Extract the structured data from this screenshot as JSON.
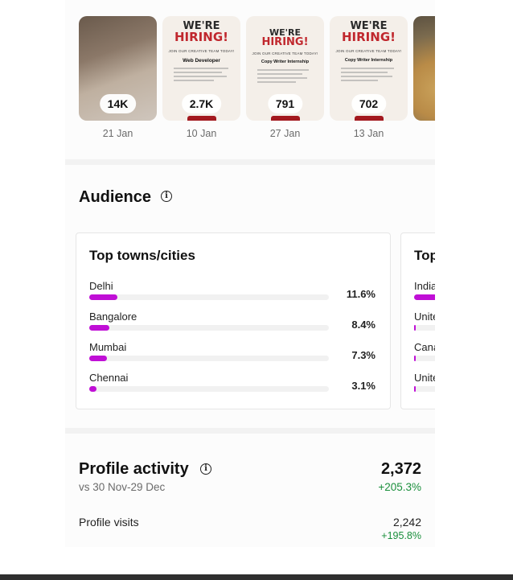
{
  "posts": [
    {
      "count": "14K",
      "date": "21 Jan"
    },
    {
      "count": "2.7K",
      "date": "10 Jan",
      "poster": {
        "line1": "WE'RE",
        "line2": "HIRING!",
        "sub": "JOIN OUR CREATIVE TEAM TODAY!",
        "role": "Web Developer"
      }
    },
    {
      "count": "791",
      "date": "27 Jan",
      "poster": {
        "line1": "WE'RE",
        "line2": "HIRING!",
        "sub": "JOIN OUR CREATIVE TEAM TODAY!",
        "role": "Copy Writer Internship"
      }
    },
    {
      "count": "702",
      "date": "13 Jan",
      "poster": {
        "line1": "WE'RE",
        "line2": "HIRING!",
        "sub": "JOIN OUR CREATIVE TEAM TODAY!",
        "role": "Copy Writer Internship"
      }
    }
  ],
  "audience": {
    "title": "Audience",
    "cards": [
      {
        "title": "Top towns/cities",
        "rows": [
          {
            "name": "Delhi",
            "pct": "11.6%",
            "fraction": 0.116
          },
          {
            "name": "Bangalore",
            "pct": "8.4%",
            "fraction": 0.084
          },
          {
            "name": "Mumbai",
            "pct": "7.3%",
            "fraction": 0.073
          },
          {
            "name": "Chennai",
            "pct": "3.1%",
            "fraction": 0.031
          }
        ]
      },
      {
        "title": "Top",
        "rows": [
          {
            "name": "India"
          },
          {
            "name": "Unite"
          },
          {
            "name": "Cana"
          },
          {
            "name": "Unite"
          }
        ]
      }
    ]
  },
  "profile_activity": {
    "title": "Profile activity",
    "range": "vs 30 Nov-29 Dec",
    "total": "2,372",
    "change": "+205.3%",
    "visits_label": "Profile visits",
    "visits_value": "2,242",
    "visits_change": "+195.8%"
  },
  "colors": {
    "accent": "#c00fd6",
    "positive": "#1a8f3c",
    "brand_red": "#c0272d"
  }
}
